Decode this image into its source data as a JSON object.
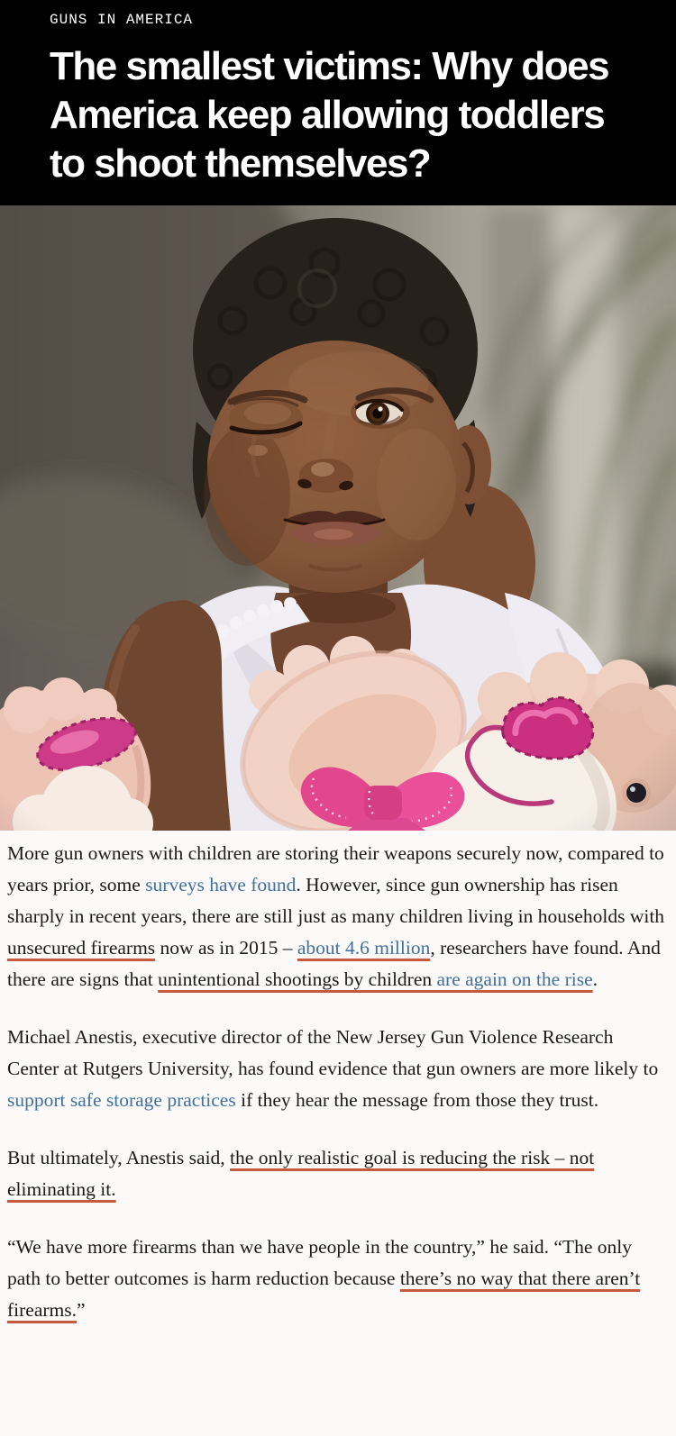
{
  "header": {
    "kicker": "GUNS IN AMERICA",
    "headline": "The smallest victims: Why does America keep allowing toddlers to shoot themselves?",
    "headline_lines": [
      "The smallest victims: Why does",
      "America keep allowing toddlers",
      "to shoot themselves?"
    ]
  },
  "hero_image": {
    "description": "Close-up portrait of a toddler with a closed, injured left eye, wearing a white ruffled top and holding pink teddy bears, in front of a blurred gray wall and palm plant"
  },
  "colors": {
    "header_bg": "#000000",
    "headline_text": "#ffffff",
    "body_text": "#1b1b1b",
    "link_blue": "#41709f",
    "annotation_red": "#c65a3e",
    "page_bg": "#fbfaf8"
  },
  "article": {
    "paragraphs": [
      {
        "segments": [
          {
            "t": "More gun owners with children are storing their weapons securely now, compared to years prior, some ",
            "s": "plain"
          },
          {
            "t": "surveys have found",
            "s": "link"
          },
          {
            "t": ". However, since gun ownership has risen sharply in recent years, there are still just as many children living in households with ",
            "s": "plain"
          },
          {
            "t": "unsecured firearms",
            "s": "mark"
          },
          {
            "t": " now as in 2015 – ",
            "s": "plain"
          },
          {
            "t": "about 4.6 million",
            "s": "link-mark"
          },
          {
            "t": ", researchers have found. And there are signs that ",
            "s": "plain"
          },
          {
            "t": "unintentional shootings by children ",
            "s": "mark"
          },
          {
            "t": "are again on the rise",
            "s": "link-mark"
          },
          {
            "t": ".",
            "s": "plain"
          }
        ]
      },
      {
        "segments": [
          {
            "t": "Michael Anestis, executive director of the New Jersey Gun Violence Research Center at Rutgers University, has found evidence that gun owners are more likely to ",
            "s": "plain"
          },
          {
            "t": "support safe storage practices",
            "s": "link"
          },
          {
            "t": " if they hear the message from those they trust.",
            "s": "plain"
          }
        ]
      },
      {
        "segments": [
          {
            "t": "But ultimately, Anestis said, ",
            "s": "plain"
          },
          {
            "t": "the only realistic goal is reducing the risk – not eliminating it.",
            "s": "mark"
          }
        ]
      },
      {
        "segments": [
          {
            "t": "“We have more firearms than we have people in the country,” he said. “The only path to better outcomes is harm reduction because ",
            "s": "plain"
          },
          {
            "t": "there’s no way that there aren’t firearms.",
            "s": "mark"
          },
          {
            "t": "”",
            "s": "plain"
          }
        ]
      }
    ]
  }
}
